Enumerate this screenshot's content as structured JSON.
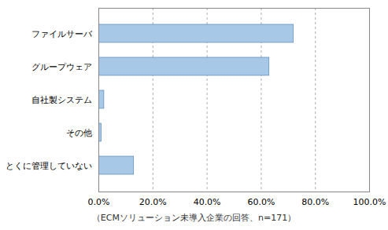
{
  "chart_data": {
    "type": "bar",
    "orientation": "horizontal",
    "categories": [
      "ファイルサーバ",
      "グループウェア",
      "自社製システム",
      "その他",
      "とくに管理していない"
    ],
    "values": [
      72.0,
      63.0,
      2.0,
      1.0,
      13.0
    ],
    "color": "#a8c8e8",
    "xlim": [
      0,
      100
    ],
    "xticks": [
      {
        "value": 0,
        "label": "0.0%"
      },
      {
        "value": 20,
        "label": "20.0%"
      },
      {
        "value": 40,
        "label": "40.0%"
      },
      {
        "value": 60,
        "label": "60.0%"
      },
      {
        "value": 80,
        "label": "80.0%"
      },
      {
        "value": 100,
        "label": "100.0%"
      }
    ],
    "xlabel": "（ECMソリューション未導入企業の回答、n=171）",
    "grid": true
  }
}
